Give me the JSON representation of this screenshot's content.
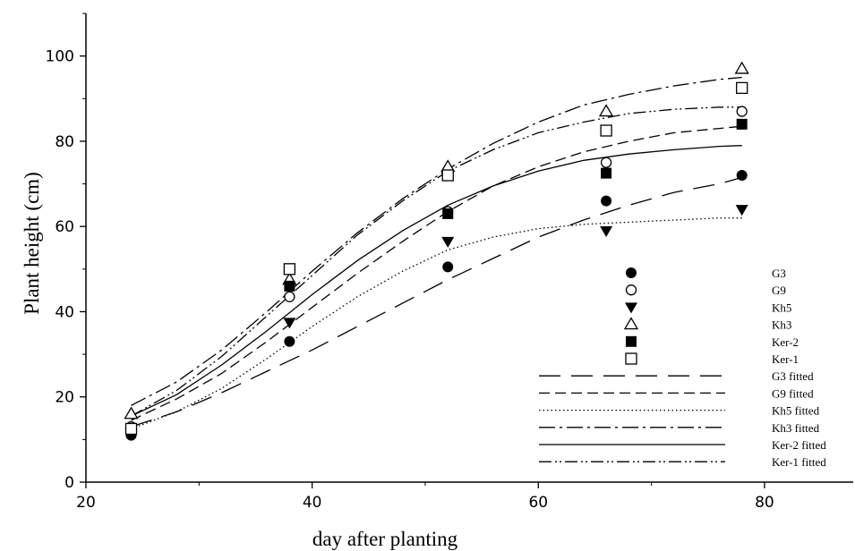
{
  "chart_data": {
    "type": "scatter",
    "xlabel": "day after planting",
    "ylabel": "Plant height (cm)",
    "xlim": [
      20,
      88
    ],
    "ylim": [
      0,
      110
    ],
    "xticks": [
      20,
      40,
      60,
      80
    ],
    "yticks": [
      0,
      20,
      40,
      60,
      80,
      100
    ],
    "xtick_labels": [
      "20",
      "40",
      "60",
      "80"
    ],
    "ytick_labels": [
      "0",
      "20",
      "40",
      "60",
      "80",
      "100"
    ],
    "grid": false,
    "legend_position": "right",
    "observed": [
      {
        "name": "G3",
        "marker": "filled-circle",
        "x": [
          24,
          38,
          52,
          66,
          78
        ],
        "y": [
          11,
          33,
          50.5,
          66,
          72
        ]
      },
      {
        "name": "G9",
        "marker": "open-circle",
        "x": [
          24,
          38,
          52,
          66,
          78
        ],
        "y": [
          13,
          43.5,
          63.5,
          75,
          87
        ]
      },
      {
        "name": "Kh5",
        "marker": "filled-triangle-down",
        "x": [
          24,
          38,
          52,
          66,
          78
        ],
        "y": [
          11.5,
          37.5,
          56.5,
          59,
          64
        ]
      },
      {
        "name": "Kh3",
        "marker": "open-triangle-up",
        "x": [
          24,
          38,
          52,
          66,
          78
        ],
        "y": [
          16,
          47.5,
          74,
          87,
          97
        ]
      },
      {
        "name": "Ker-2",
        "marker": "filled-square",
        "x": [
          24,
          38,
          52,
          66,
          78
        ],
        "y": [
          12,
          46,
          63,
          72.5,
          84
        ]
      },
      {
        "name": "Ker-1",
        "marker": "open-square",
        "x": [
          24,
          38,
          52,
          66,
          78
        ],
        "y": [
          12.5,
          50,
          72,
          82.5,
          92.5
        ]
      }
    ],
    "fitted": [
      {
        "name": "G3 fitted",
        "dash": "long-dash",
        "x": [
          24,
          28,
          32,
          36,
          40,
          44,
          48,
          52,
          56,
          60,
          64,
          68,
          72,
          76,
          78
        ],
        "y": [
          13,
          16.5,
          21,
          26,
          31,
          36.5,
          42,
          47.5,
          52.5,
          57.5,
          61.5,
          65,
          68,
          70,
          71.5
        ]
      },
      {
        "name": "G9 fitted",
        "dash": "dash",
        "x": [
          24,
          28,
          32,
          36,
          40,
          44,
          48,
          52,
          56,
          60,
          64,
          68,
          72,
          76,
          78
        ],
        "y": [
          14.5,
          19.5,
          25.5,
          33,
          41,
          49,
          56.5,
          63.5,
          69.5,
          74,
          77.5,
          80,
          82,
          83,
          83.5
        ]
      },
      {
        "name": "Kh5 fitted",
        "dash": "dot",
        "x": [
          24,
          28,
          32,
          36,
          40,
          44,
          48,
          52,
          56,
          60,
          64,
          68,
          72,
          76,
          78
        ],
        "y": [
          12.5,
          16.5,
          22,
          29,
          36.5,
          43.5,
          49.5,
          54.5,
          57.5,
          59.5,
          60.5,
          61,
          61.5,
          62,
          62
        ]
      },
      {
        "name": "Kh3 fitted",
        "dash": "dash-dot",
        "x": [
          24,
          28,
          32,
          36,
          40,
          44,
          48,
          52,
          56,
          60,
          64,
          68,
          72,
          76,
          78
        ],
        "y": [
          18,
          23.5,
          31,
          40,
          49.5,
          58.5,
          66.5,
          73.5,
          79.5,
          84.5,
          88.5,
          91,
          93,
          94.5,
          95
        ]
      },
      {
        "name": "Ker-2 fitted",
        "dash": "solid",
        "x": [
          24,
          28,
          32,
          36,
          40,
          44,
          48,
          52,
          56,
          60,
          64,
          68,
          72,
          76,
          78
        ],
        "y": [
          15.5,
          20.5,
          27.5,
          35.5,
          44,
          52,
          59,
          65,
          69.5,
          73,
          75.5,
          77,
          78,
          78.8,
          79
        ]
      },
      {
        "name": "Ker-1 fitted",
        "dash": "dash-dot-dot",
        "x": [
          24,
          28,
          32,
          36,
          40,
          44,
          48,
          52,
          56,
          60,
          64,
          68,
          72,
          76,
          78
        ],
        "y": [
          15.5,
          21.5,
          29.5,
          39,
          48.5,
          58,
          66,
          73,
          78,
          82,
          84.5,
          86.5,
          87.5,
          88,
          88
        ]
      }
    ]
  }
}
